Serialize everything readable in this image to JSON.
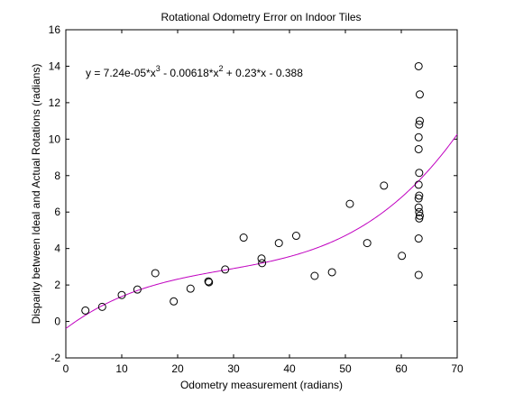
{
  "chart_data": {
    "type": "scatter",
    "title": "Rotational Odometry Error on Indoor Tiles",
    "xlabel": "Odometry measurement (radians)",
    "ylabel": "Disparity between Ideal and Actual Rotations (radians)",
    "xlim": [
      0,
      70
    ],
    "ylim": [
      -2,
      16
    ],
    "xticks": [
      0,
      10,
      20,
      30,
      40,
      50,
      60,
      70
    ],
    "yticks": [
      -2,
      0,
      2,
      4,
      6,
      8,
      10,
      12,
      14,
      16
    ],
    "grid": false,
    "legend": "none",
    "marker": "open-circle",
    "marker_color": "#000000",
    "fit_color": "#c000c0",
    "annotation": {
      "prefix": "y = 7.24e-05*x",
      "exp1": "3",
      "mid1": " - 0.00618*x",
      "exp2": "2",
      "tail": " + 0.23*x - 0.388"
    },
    "fit": {
      "coefficients": [
        7.24e-05,
        -0.00618,
        0.23,
        -0.388
      ]
    },
    "points": [
      [
        3.5,
        0.6
      ],
      [
        6.5,
        0.8
      ],
      [
        10,
        1.45
      ],
      [
        12.8,
        1.75
      ],
      [
        16,
        2.65
      ],
      [
        19.3,
        1.1
      ],
      [
        22.3,
        1.8
      ],
      [
        25.5,
        2.2
      ],
      [
        25.6,
        2.15
      ],
      [
        28.5,
        2.85
      ],
      [
        31.8,
        4.6
      ],
      [
        35,
        3.45
      ],
      [
        35.1,
        3.2
      ],
      [
        38.1,
        4.3
      ],
      [
        41.2,
        4.7
      ],
      [
        44.5,
        2.5
      ],
      [
        47.6,
        2.7
      ],
      [
        50.8,
        6.45
      ],
      [
        53.9,
        4.3
      ],
      [
        56.9,
        7.45
      ],
      [
        60.1,
        3.6
      ],
      [
        63.1,
        14.0
      ],
      [
        63.3,
        12.45
      ],
      [
        63.3,
        11.0
      ],
      [
        63.2,
        10.8
      ],
      [
        63.1,
        10.1
      ],
      [
        63.1,
        9.45
      ],
      [
        63.2,
        8.15
      ],
      [
        63.1,
        7.5
      ],
      [
        63.2,
        6.9
      ],
      [
        63.1,
        6.75
      ],
      [
        63.1,
        6.25
      ],
      [
        63.2,
        6.0
      ],
      [
        63.3,
        5.8
      ],
      [
        63.2,
        5.65
      ],
      [
        63.1,
        4.55
      ],
      [
        63.1,
        2.55
      ]
    ]
  }
}
